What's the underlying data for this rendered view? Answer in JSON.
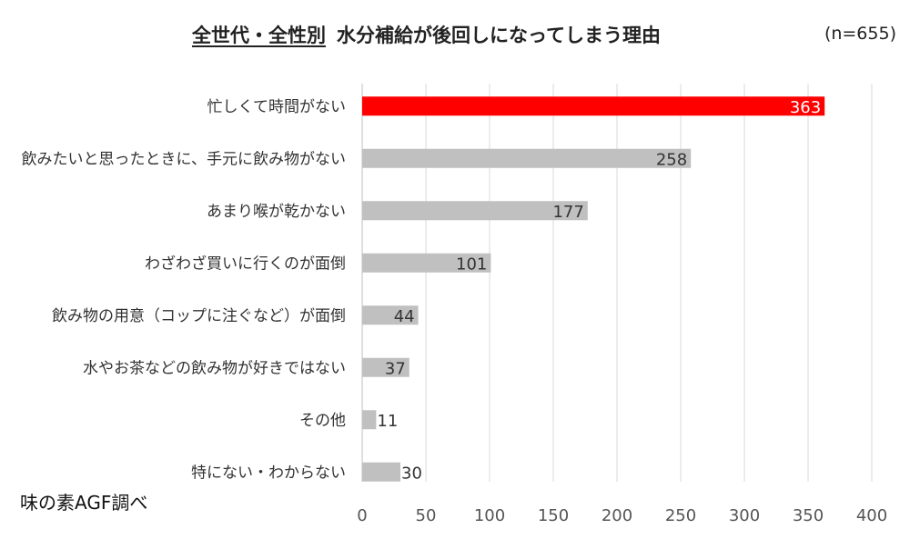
{
  "chart_data": {
    "type": "bar",
    "orientation": "horizontal",
    "title_underlined": "全世代・全性別",
    "title_main": "水分補給が後回しになってしまう理由",
    "sample_size": "(n=655)",
    "source_note": "味の素AGF調べ",
    "categories": [
      "忙しくて時間がない",
      "飲みたいと思ったときに、手元に飲み物がない",
      "あまり喉が乾かない",
      "わざわざ買いに行くのが面倒",
      "飲み物の用意（コップに注ぐなど）が面倒",
      "水やお茶などの飲み物が好きではない",
      "その他",
      "特にない・わからない"
    ],
    "values": [
      363,
      258,
      177,
      101,
      44,
      37,
      11,
      30
    ],
    "xlim": [
      0,
      400
    ],
    "xticks": [
      0,
      50,
      100,
      150,
      200,
      250,
      300,
      350,
      400
    ],
    "grid": true,
    "colors": {
      "highlight": "#ff0000",
      "default": "#c0c0c0",
      "highlight_label": "#ffffff",
      "default_label": "#333333"
    }
  }
}
